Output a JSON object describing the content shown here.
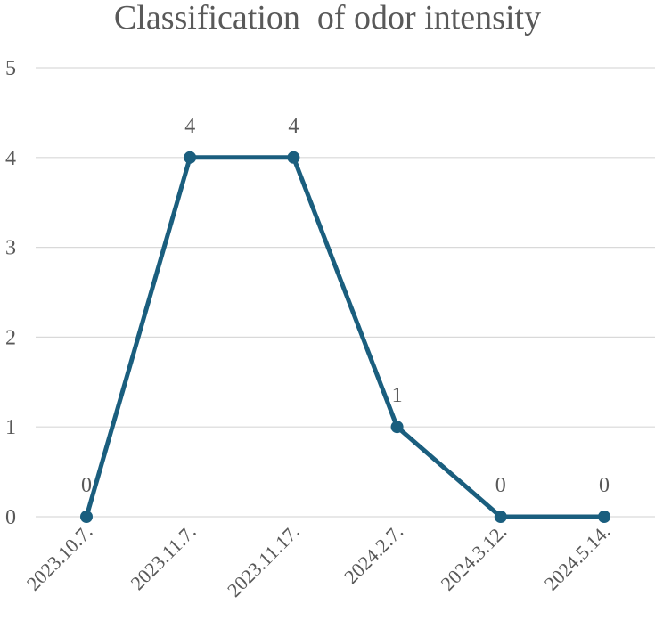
{
  "chart_data": {
    "type": "line",
    "title": "Classification  of odor intensity",
    "xlabel": "",
    "ylabel": "",
    "categories": [
      "2023.10.7.",
      "2023.11.7.",
      "2023.11.17.",
      "2024.2.7.",
      "2024.3.12.",
      "2024.5.14."
    ],
    "series": [
      {
        "values": [
          0,
          4,
          4,
          1,
          0,
          0
        ]
      }
    ],
    "ylim": [
      0,
      5
    ],
    "yticks": [
      0,
      1,
      2,
      3,
      4,
      5
    ],
    "grid": true,
    "data_labels": true,
    "legend": "none",
    "colors": {
      "line": "#1a5e7e",
      "grid": "#d9d9d9",
      "text": "#595959"
    }
  }
}
